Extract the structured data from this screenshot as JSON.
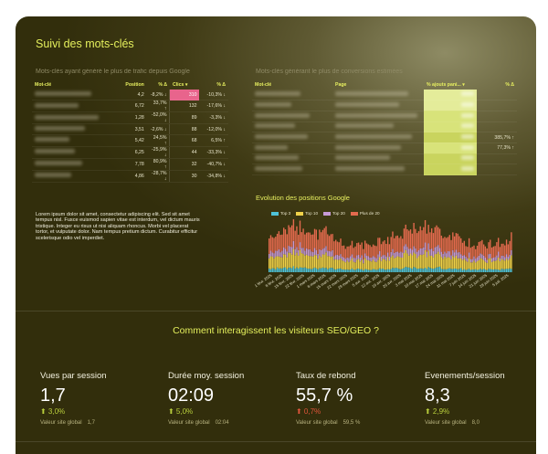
{
  "title": "Suivi des mots-clés",
  "left_section": {
    "label": "Mots-clés ayant généré le plus de trafic depuis Google",
    "headers": [
      "Mot-clé",
      "Position",
      "% Δ",
      "Clics ▾",
      "% Δ"
    ],
    "rows": [
      {
        "position": "4,2",
        "pos_delta": "-8,2% ↓",
        "clics": "310",
        "clics_delta": "-10,3% ↓"
      },
      {
        "position": "6,72",
        "pos_delta": "33,7% ↑",
        "clics": "132",
        "clics_delta": "-17,6% ↓"
      },
      {
        "position": "1,28",
        "pos_delta": "-52,0% ↓",
        "clics": "89",
        "clics_delta": "-3,3% ↓"
      },
      {
        "position": "3,51",
        "pos_delta": "-2,6% ↓",
        "clics": "88",
        "clics_delta": "-12,0% ↓"
      },
      {
        "position": "5,42",
        "pos_delta": "24,5% ↑",
        "clics": "68",
        "clics_delta": "6,5% ↑"
      },
      {
        "position": "6,25",
        "pos_delta": "-25,9% ↓",
        "clics": "44",
        "clics_delta": "-33,3% ↓"
      },
      {
        "position": "7,78",
        "pos_delta": "80,9% ↑",
        "clics": "32",
        "clics_delta": "-40,7% ↓"
      },
      {
        "position": "4,86",
        "pos_delta": "-28,7% ↓",
        "clics": "30",
        "clics_delta": "-34,8% ↓"
      }
    ]
  },
  "right_section": {
    "label": "Mots-clés générant le plus de conversions estimées",
    "headers": [
      "Mot-clé",
      "Page",
      "% ajouts pani... ▾",
      "% Δ"
    ],
    "rows": [
      {
        "pct": "",
        "delta": ""
      },
      {
        "pct": "",
        "delta": ""
      },
      {
        "pct": "",
        "delta": ""
      },
      {
        "pct": "",
        "delta": ""
      },
      {
        "pct": "",
        "delta": "385,7% ↑"
      },
      {
        "pct": "",
        "delta": "77,3% ↑"
      },
      {
        "pct": "",
        "delta": ""
      },
      {
        "pct": "",
        "delta": ""
      }
    ]
  },
  "lorem": "Lorem ipsum dolor sit amet, consectetur adipiscing elit. Sed sit amet tempus nisl. Fusce euismod sapien vitae est interdum, vel dictum mauris tristique. Integer eu risus ut nisi aliquam rhoncus. Morbi vel placerat tortor, et vulputate dolor. Nam tempus pretium dictum. Curabitur efficitur scelerisque odio vel imperdiet.",
  "chart_data": {
    "type": "bar",
    "title": "Evolution des positions Google",
    "series": [
      {
        "name": "Top 3",
        "color": "#4fc3d8"
      },
      {
        "name": "Top 10",
        "color": "#f0d24a"
      },
      {
        "name": "Top 20",
        "color": "#c79ad6"
      },
      {
        "name": "Plus de 20",
        "color": "#e46a4e"
      }
    ],
    "x_tick_labels": [
      "1 févr. 2025",
      "8 févr. 2025",
      "15 févr. 2025",
      "22 févr. 2025",
      "1 mars 2025",
      "8 mars 2025",
      "15 mars 2025",
      "22 mars 2025",
      "29 mars 2025",
      "5 avr. 2025",
      "12 avr. 2025",
      "19 avr. 2025",
      "26 avr. 2025",
      "3 mai 2025",
      "10 mai 2025",
      "17 mai 2025",
      "24 mai 2025",
      "31 mai 2025",
      "7 juin 2025",
      "14 juin 2025",
      "21 juin 2025",
      "28 juin 2025",
      "5 juil. 2025"
    ]
  },
  "seo_section": {
    "title": "Comment interagissent les visiteurs SEO/GEO ?",
    "global_label": "Valeur site global",
    "kpis": [
      {
        "label": "Vues par session",
        "value": "1,7",
        "delta": "⬆ 3,0%",
        "delta_color": "#b9cf3c",
        "global": "1,7"
      },
      {
        "label": "Durée moy. session",
        "value": "02:09",
        "delta": "⬆ 5,0%",
        "delta_color": "#b9cf3c",
        "global": "02:04"
      },
      {
        "label": "Taux de rebond",
        "value": "55,7 %",
        "delta": "⬆ 0,7%",
        "delta_color": "#e0553a",
        "global": "59,5 %"
      },
      {
        "label": "Evenements/session",
        "value": "8,3",
        "delta": "⬆ 2,9%",
        "delta_color": "#b9cf3c",
        "global": "8,0"
      }
    ]
  }
}
